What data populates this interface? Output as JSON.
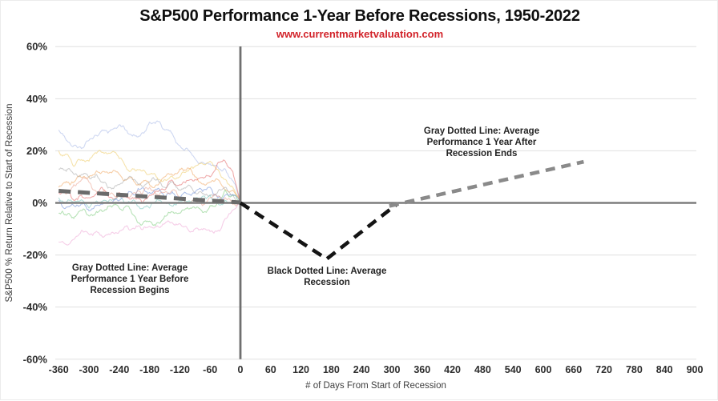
{
  "header": {
    "title": "S&P500 Performance 1-Year Before Recessions, 1950-2022",
    "subtitle": "www.currentmarketvaluation.com"
  },
  "colors": {
    "subtitle_red": "#d2232a",
    "grid": "#e0e0e0",
    "axis_zero": "#7d7d7d",
    "day_zero_axis": "#6f6f6f",
    "avg_before": "#6b6b6b",
    "avg_recession": "#141414",
    "avg_after": "#8a8a8a",
    "tick_text": "#2d2d2d",
    "axis_title_text": "#3e3e3e",
    "annotation_text": "#242424"
  },
  "annotations": [
    {
      "text": "Gray Dotted Line: Average\nPerformance 1 Year Before\nRecession Begins"
    },
    {
      "text": "Black Dotted Line: Average\nRecession"
    },
    {
      "text": "Gray Dotted Line: Average\nPerformance 1 Year After\nRecession Ends"
    }
  ],
  "chart_data": {
    "type": "line",
    "title": "S&P500 Performance 1-Year Before Recessions, 1950-2022",
    "subtitle": "www.currentmarketvaluation.com",
    "xlabel": "# of Days From Start of Recession",
    "ylabel": "S&P500 % Return Relative to Start of Recession",
    "xlim": [
      -365,
      905
    ],
    "ylim": [
      -60,
      60
    ],
    "grid": "horizontal-only",
    "x_ticks": [
      -360,
      -300,
      -240,
      -180,
      -120,
      -60,
      0,
      60,
      120,
      180,
      240,
      300,
      360,
      420,
      480,
      540,
      600,
      660,
      720,
      780,
      840,
      900
    ],
    "y_ticks": [
      60,
      40,
      20,
      0,
      -20,
      -40,
      -60
    ],
    "y_tick_suffix": "%",
    "avg_before": {
      "name": "Average Performance 1 Year Before Recession Begins",
      "style": "gray dashed",
      "points": [
        [
          -360,
          4.6
        ],
        [
          0,
          0.15
        ]
      ]
    },
    "avg_recession": {
      "name": "Average Recession",
      "style": "black dashed",
      "points": [
        [
          0,
          0
        ],
        [
          171,
          -21.5
        ],
        [
          310,
          -0.5
        ]
      ]
    },
    "avg_after": {
      "name": "Average Performance 1 Year After Recession Ends",
      "style": "gray dashed",
      "points": [
        [
          295,
          -1.2
        ],
        [
          680,
          15.8
        ]
      ]
    },
    "series": [
      {
        "name": "recession-path-1",
        "color": "#9fb1e6",
        "opacity": 0.5,
        "seed": 1,
        "points": [
          [
            -360,
            28
          ],
          [
            -330,
            22
          ],
          [
            -300,
            24
          ],
          [
            -270,
            28
          ],
          [
            -240,
            30
          ],
          [
            -210,
            26
          ],
          [
            -180,
            31
          ],
          [
            -150,
            28
          ],
          [
            -120,
            22
          ],
          [
            -90,
            17
          ],
          [
            -60,
            15
          ],
          [
            -30,
            13
          ],
          [
            -10,
            7
          ],
          [
            0,
            0
          ]
        ]
      },
      {
        "name": "recession-path-2",
        "color": "#edc75a",
        "opacity": 0.5,
        "seed": 2,
        "points": [
          [
            -360,
            20
          ],
          [
            -330,
            14
          ],
          [
            -300,
            16
          ],
          [
            -270,
            19
          ],
          [
            -240,
            17
          ],
          [
            -210,
            13
          ],
          [
            -180,
            11
          ],
          [
            -150,
            9
          ],
          [
            -120,
            10
          ],
          [
            -90,
            14
          ],
          [
            -60,
            16
          ],
          [
            -30,
            9
          ],
          [
            -10,
            4
          ],
          [
            0,
            0
          ]
        ]
      },
      {
        "name": "recession-path-3",
        "color": "#ef9d4f",
        "opacity": 0.5,
        "seed": 3,
        "points": [
          [
            -360,
            6
          ],
          [
            -330,
            8
          ],
          [
            -300,
            10
          ],
          [
            -270,
            12
          ],
          [
            -240,
            11
          ],
          [
            -210,
            8
          ],
          [
            -180,
            7
          ],
          [
            -150,
            10
          ],
          [
            -120,
            13
          ],
          [
            -90,
            10
          ],
          [
            -60,
            8
          ],
          [
            -30,
            5
          ],
          [
            0,
            0
          ]
        ]
      },
      {
        "name": "recession-path-4",
        "color": "#e25c5c",
        "opacity": 0.5,
        "seed": 4,
        "points": [
          [
            -360,
            4
          ],
          [
            -330,
            1
          ],
          [
            -300,
            2
          ],
          [
            -270,
            5
          ],
          [
            -240,
            4
          ],
          [
            -210,
            2
          ],
          [
            -180,
            3
          ],
          [
            -150,
            5
          ],
          [
            -120,
            7
          ],
          [
            -90,
            9
          ],
          [
            -60,
            10
          ],
          [
            -30,
            16
          ],
          [
            -15,
            12
          ],
          [
            0,
            0
          ]
        ]
      },
      {
        "name": "recession-path-5",
        "color": "#a3a3a3",
        "opacity": 0.5,
        "seed": 5,
        "points": [
          [
            -360,
            13
          ],
          [
            -330,
            11
          ],
          [
            -300,
            10
          ],
          [
            -270,
            8
          ],
          [
            -240,
            7
          ],
          [
            -210,
            9
          ],
          [
            -180,
            8
          ],
          [
            -150,
            6
          ],
          [
            -120,
            5
          ],
          [
            -90,
            4
          ],
          [
            -60,
            3
          ],
          [
            -30,
            6
          ],
          [
            0,
            0
          ]
        ]
      },
      {
        "name": "recession-path-6",
        "color": "#72c872",
        "opacity": 0.5,
        "seed": 6,
        "points": [
          [
            -360,
            -4
          ],
          [
            -330,
            -6
          ],
          [
            -300,
            -5
          ],
          [
            -270,
            -3
          ],
          [
            -240,
            -2
          ],
          [
            -210,
            -5
          ],
          [
            -180,
            -7
          ],
          [
            -150,
            -5
          ],
          [
            -120,
            -4
          ],
          [
            -90,
            -2
          ],
          [
            -60,
            -1
          ],
          [
            -30,
            5
          ],
          [
            -10,
            3
          ],
          [
            0,
            0
          ]
        ]
      },
      {
        "name": "recession-path-7",
        "color": "#6ec4ba",
        "opacity": 0.5,
        "seed": 7,
        "points": [
          [
            -360,
            2
          ],
          [
            -330,
            0
          ],
          [
            -300,
            -2
          ],
          [
            -270,
            1
          ],
          [
            -240,
            3
          ],
          [
            -210,
            1
          ],
          [
            -180,
            -2
          ],
          [
            -150,
            0
          ],
          [
            -120,
            1
          ],
          [
            -90,
            2
          ],
          [
            -60,
            3
          ],
          [
            -30,
            1
          ],
          [
            0,
            0
          ]
        ]
      },
      {
        "name": "recession-path-8",
        "color": "#6388d8",
        "opacity": 0.5,
        "seed": 8,
        "points": [
          [
            -360,
            1
          ],
          [
            -330,
            -1
          ],
          [
            -300,
            -3
          ],
          [
            -270,
            0
          ],
          [
            -240,
            1
          ],
          [
            -210,
            3
          ],
          [
            -180,
            4
          ],
          [
            -150,
            2
          ],
          [
            -120,
            2
          ],
          [
            -90,
            4
          ],
          [
            -60,
            6
          ],
          [
            -30,
            3
          ],
          [
            0,
            0
          ]
        ]
      },
      {
        "name": "recession-path-9",
        "color": "#ee9ed2",
        "opacity": 0.5,
        "seed": 9,
        "points": [
          [
            -360,
            -15
          ],
          [
            -330,
            -14
          ],
          [
            -300,
            -12
          ],
          [
            -270,
            -13
          ],
          [
            -240,
            -11
          ],
          [
            -210,
            -10
          ],
          [
            -180,
            -9
          ],
          [
            -150,
            -8
          ],
          [
            -120,
            -8
          ],
          [
            -90,
            -10
          ],
          [
            -60,
            -11
          ],
          [
            -30,
            -6
          ],
          [
            0,
            0
          ]
        ]
      },
      {
        "name": "recession-path-10",
        "color": "#e99a86",
        "opacity": 0.5,
        "seed": 10,
        "points": [
          [
            -360,
            5
          ],
          [
            -330,
            7
          ],
          [
            -300,
            8
          ],
          [
            -270,
            5
          ],
          [
            -240,
            3
          ],
          [
            -210,
            4
          ],
          [
            -180,
            6
          ],
          [
            -150,
            4
          ],
          [
            -120,
            2
          ],
          [
            -90,
            1
          ],
          [
            -60,
            2
          ],
          [
            -30,
            2
          ],
          [
            0,
            0
          ]
        ]
      }
    ]
  }
}
